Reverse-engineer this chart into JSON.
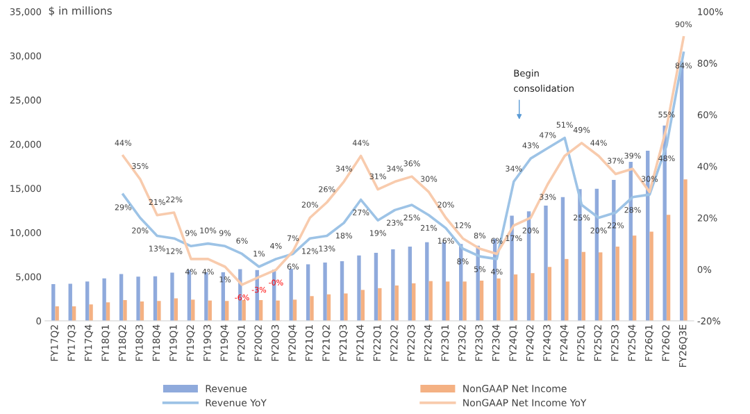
{
  "chart_data": {
    "type": "bar",
    "ylabel": "$ in millions",
    "categories": [
      "FY17Q2",
      "FY17Q3",
      "FY17Q4",
      "FY18Q1",
      "FY18Q2",
      "FY18Q3",
      "FY18Q4",
      "FY19Q1",
      "FY19Q2",
      "FY19Q3",
      "FY19Q4",
      "FY20Q1",
      "FY20Q2",
      "FY20Q3",
      "FY20Q4",
      "FY21Q1",
      "FY21Q2",
      "FY21Q3",
      "FY21Q4",
      "FY22Q1",
      "FY22Q2",
      "FY22Q3",
      "FY22Q4",
      "FY23Q1",
      "FY23Q2",
      "FY23Q3",
      "FY23Q4",
      "FY24Q1",
      "FY24Q2",
      "FY24Q3",
      "FY24Q4",
      "FY25Q1",
      "FY25Q2",
      "FY25Q3",
      "FY25Q4",
      "FY26Q1",
      "FY26Q2",
      "FY26Q3E"
    ],
    "series": [
      {
        "name": "Revenue",
        "color": "#8faadc",
        "values": [
          4150,
          4200,
          4450,
          4800,
          5300,
          5000,
          5050,
          5450,
          5750,
          5500,
          5500,
          5850,
          5750,
          5800,
          5900,
          6400,
          6600,
          6750,
          7400,
          7700,
          8100,
          8400,
          8900,
          8900,
          8700,
          8500,
          9300,
          11900,
          12400,
          13050,
          14000,
          14900,
          14950,
          15950,
          18000,
          19250,
          22100,
          29400
        ]
      },
      {
        "name": "NonGAAP Net Income",
        "color": "#f4b183",
        "values": [
          1650,
          1650,
          1850,
          2100,
          2350,
          2200,
          2250,
          2550,
          2400,
          2300,
          2250,
          2350,
          2350,
          2300,
          2400,
          2800,
          3000,
          3100,
          3500,
          3700,
          4000,
          4250,
          4500,
          4450,
          4450,
          4550,
          4800,
          5250,
          5400,
          6100,
          7000,
          7800,
          7750,
          8400,
          9650,
          10100,
          12000,
          16000
        ]
      },
      {
        "name": "Revenue YoY",
        "type": "line",
        "axis": "y2",
        "color": "#9dc3e6",
        "values": [
          null,
          null,
          null,
          null,
          29,
          20,
          13,
          12,
          9,
          10,
          9,
          6,
          1,
          4,
          6,
          12,
          13,
          18,
          27,
          19,
          23,
          25,
          21,
          16,
          8,
          5,
          4,
          34,
          43,
          47,
          51,
          25,
          20,
          22,
          28,
          29,
          48,
          84
        ],
        "value_labels": [
          null,
          null,
          null,
          null,
          "29%",
          "20%",
          "13%",
          "12%",
          "9%",
          "10%",
          "9%",
          "6%",
          "1%",
          "4%",
          "6%",
          "12%",
          "13%",
          "18%",
          "27%",
          "19%",
          "23%",
          "25%",
          "21%",
          "16%",
          "8%",
          "5%",
          "4%",
          "34%",
          "43%",
          "47%",
          "51%",
          "25%",
          "20%",
          "22%",
          "28%",
          null,
          "48%",
          "84%"
        ]
      },
      {
        "name": "NonGAAP Net Income YoY",
        "type": "line",
        "axis": "y2",
        "color": "#f8cbad",
        "values": [
          null,
          null,
          null,
          null,
          44,
          35,
          21,
          22,
          4,
          4,
          1,
          -6,
          -3,
          -0.2,
          7,
          20,
          26,
          34,
          44,
          31,
          34,
          36,
          30,
          20,
          12,
          8,
          6,
          17,
          20,
          33,
          44,
          49,
          44,
          37,
          39,
          30,
          55,
          90
        ],
        "value_labels": [
          null,
          null,
          null,
          null,
          "44%",
          "35%",
          "21%",
          "22%",
          "4%",
          "4%",
          "1%",
          "-6%",
          "-3%",
          "-0%",
          "7%",
          "20%",
          "26%",
          "34%",
          "44%",
          "31%",
          "34%",
          "36%",
          "30%",
          "20%",
          "12%",
          "8%",
          "6%",
          "17%",
          "20%",
          "33%",
          null,
          "49%",
          "44%",
          "37%",
          "39%",
          "30%",
          "55%",
          "90%"
        ]
      }
    ],
    "ylim": [
      0,
      35000
    ],
    "yticks": [
      {
        "value": 0,
        "label": "0"
      },
      {
        "value": 5000,
        "label": "5,000"
      },
      {
        "value": 10000,
        "label": "10,000"
      },
      {
        "value": 15000,
        "label": "15,000"
      },
      {
        "value": 20000,
        "label": "20,000"
      },
      {
        "value": 25000,
        "label": "25,000"
      },
      {
        "value": 30000,
        "label": "30,000"
      },
      {
        "value": 35000,
        "label": "35,000"
      }
    ],
    "y2lim": [
      -20,
      100
    ],
    "y2ticks": [
      {
        "value": -20,
        "label": "-20%"
      },
      {
        "value": 0,
        "label": "0%"
      },
      {
        "value": 20,
        "label": "20%"
      },
      {
        "value": 40,
        "label": "40%"
      },
      {
        "value": 60,
        "label": "60%"
      },
      {
        "value": 80,
        "label": "80%"
      },
      {
        "value": 100,
        "label": "100%"
      }
    ],
    "annotations": [
      "Begin\nconsolidation"
    ],
    "grid": false,
    "legend": "bottom",
    "marker": "none",
    "line_style": "solid"
  }
}
